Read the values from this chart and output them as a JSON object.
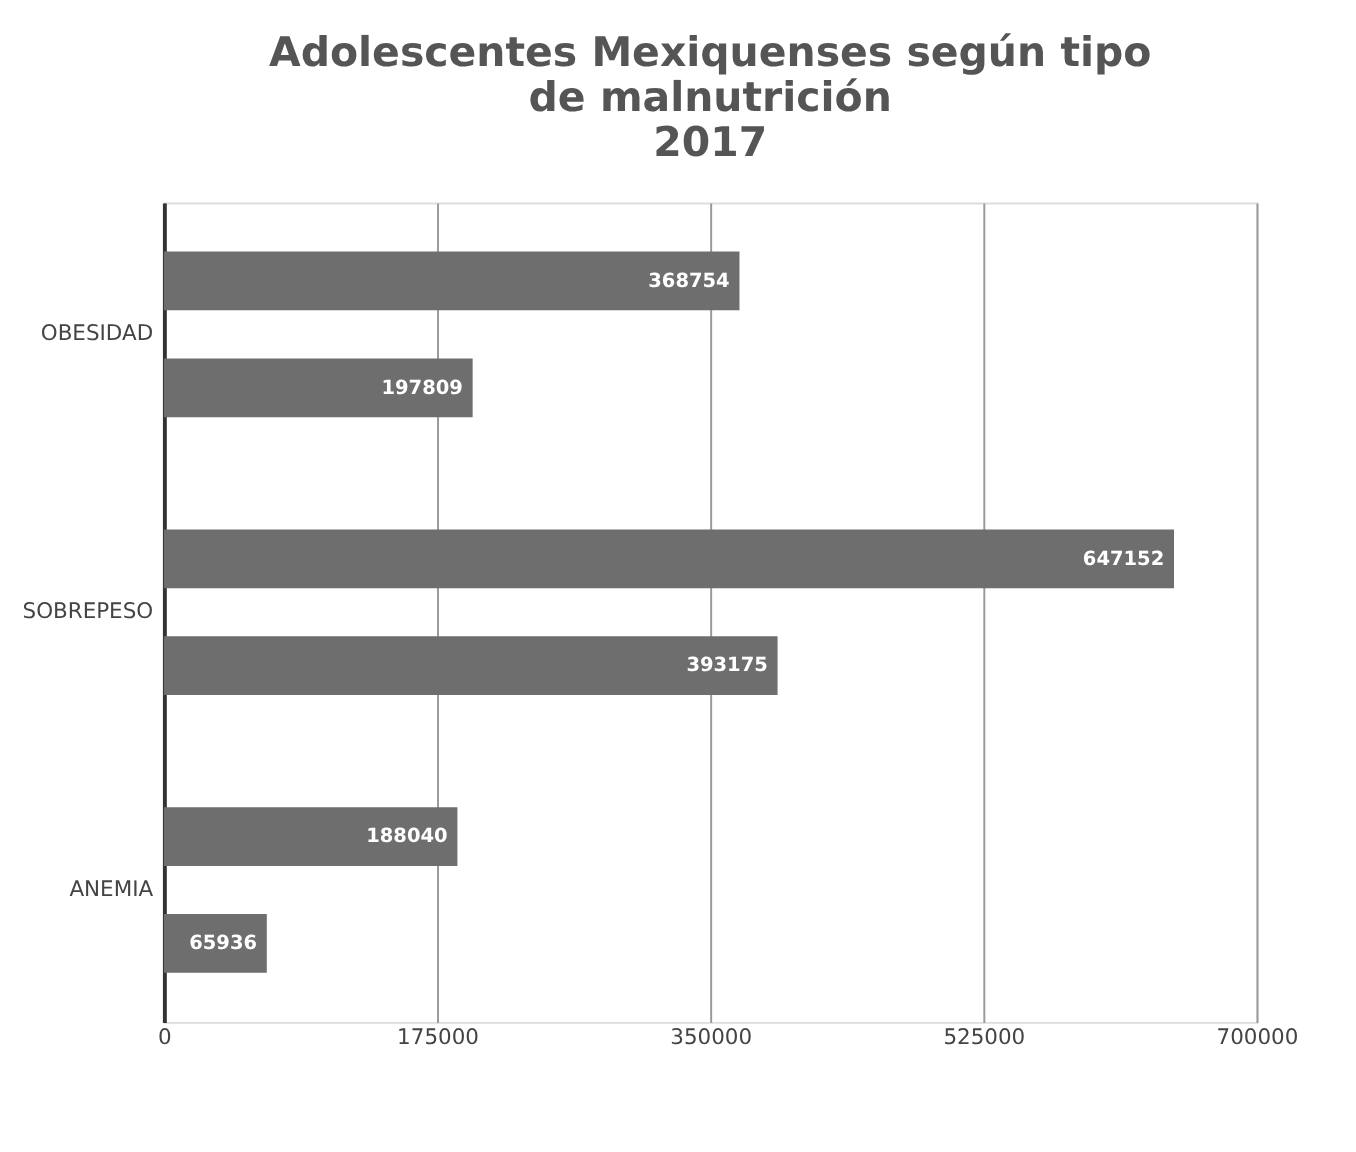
{
  "chart_data": {
    "type": "bar",
    "orientation": "horizontal",
    "title": "Adolescentes Mexiquenses según tipo\nde malnutrición\n2017",
    "categories": [
      "OBESIDAD",
      "SOBREPESO",
      "ANEMIA"
    ],
    "series": [
      {
        "color": "#6e6e6e",
        "values": [
          368754,
          647152,
          188040
        ]
      },
      {
        "color": "#6e6e6e",
        "values": [
          197809,
          393175,
          65936
        ]
      }
    ],
    "xlim": [
      0,
      700000
    ],
    "xticks": [
      0,
      175000,
      350000,
      525000,
      700000
    ],
    "grid": "x",
    "data_labels": true
  }
}
